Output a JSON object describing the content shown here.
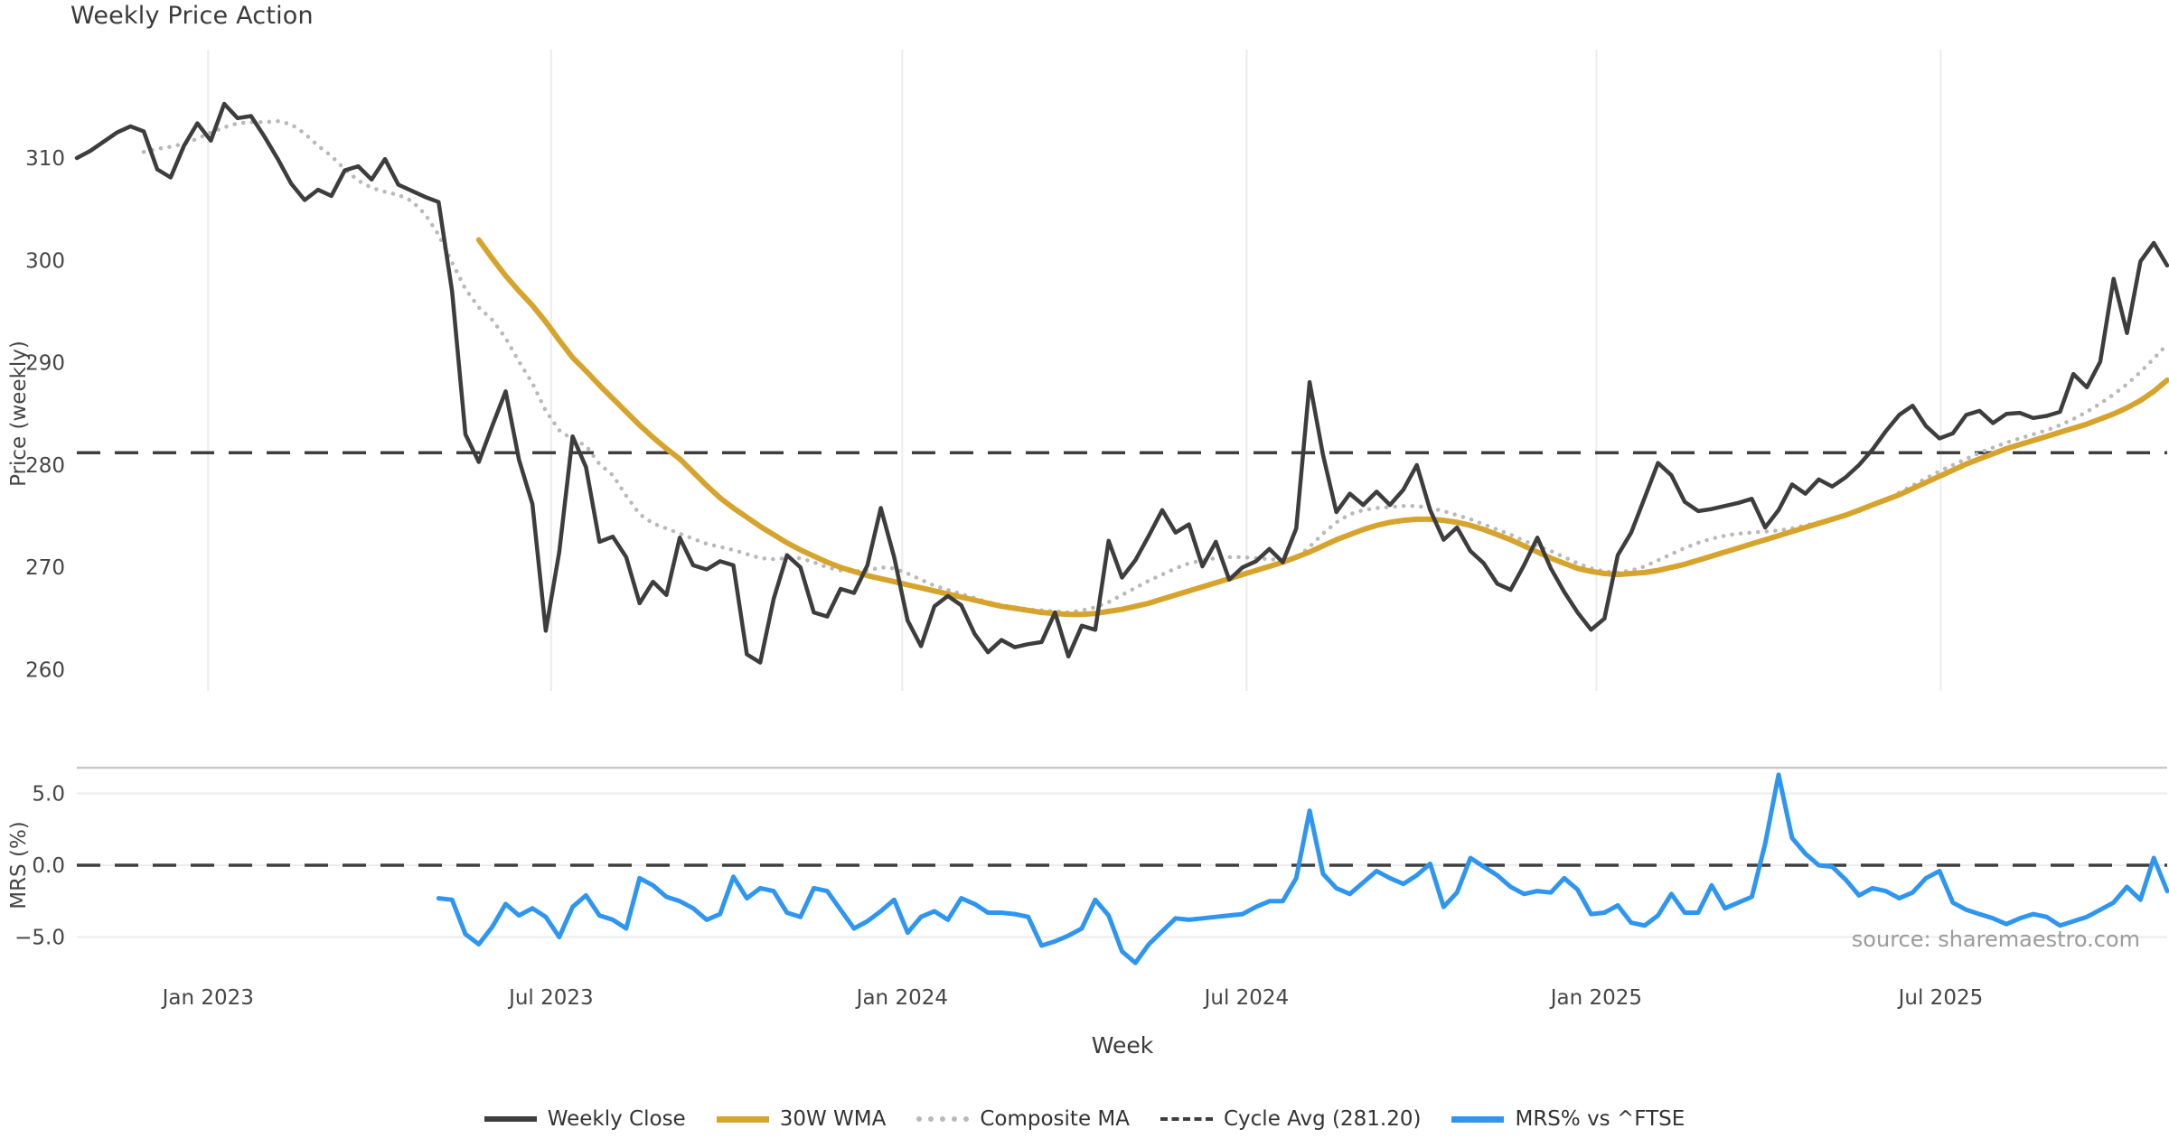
{
  "title": "Weekly Price Action",
  "source": "source: sharemaestro.com",
  "colors": {
    "close": "#3d3d3d",
    "wma": "#D6A42D",
    "composite": "#b9b9b9",
    "cycle": "#3e3e3e",
    "mrs": "#2E96F0",
    "grid": "#ececec",
    "spine": "#c9c9c9",
    "tick_text": "#454545",
    "muted_text": "#9b9b9b"
  },
  "legend": {
    "items": [
      {
        "label": "Weekly Close",
        "style": "solid-dark"
      },
      {
        "label": "30W WMA",
        "style": "solid-gold"
      },
      {
        "label": "Composite MA",
        "style": "dotted-gray"
      },
      {
        "label": "Cycle Avg (281.20)",
        "style": "dashed-dark"
      },
      {
        "label": "MRS% vs ^FTSE",
        "style": "solid-blue"
      }
    ]
  },
  "chart_data": [
    {
      "type": "line",
      "panel": "price",
      "title": "Weekly Price Action",
      "xlabel": "Week",
      "ylabel": "Price (weekly)",
      "ylim": [
        258,
        320.5
      ],
      "grid": "vertical-only",
      "y_ticks": [
        260,
        270,
        280,
        290,
        300,
        310
      ],
      "x_ticks": [
        {
          "label": "Jan 2023",
          "week": 9.8
        },
        {
          "label": "Jul 2023",
          "week": 35.4
        },
        {
          "label": "Jan 2024",
          "week": 61.6
        },
        {
          "label": "Jul 2024",
          "week": 87.3
        },
        {
          "label": "Jan 2025",
          "week": 113.4
        },
        {
          "label": "Jul 2025",
          "week": 139.1
        }
      ],
      "cycle_avg": {
        "label": "Cycle Avg (281.20)",
        "value": 281.2
      },
      "series": [
        {
          "name": "Weekly Close",
          "start_week": 0,
          "values": [
            310.0,
            310.7,
            311.6,
            312.5,
            313.1,
            312.6,
            308.9,
            308.1,
            311.2,
            313.4,
            311.7,
            315.3,
            313.9,
            314.1,
            312.1,
            309.9,
            307.5,
            305.9,
            306.9,
            306.3,
            308.8,
            309.2,
            307.9,
            309.9,
            307.4,
            306.8,
            306.2,
            305.7,
            297.0,
            283.0,
            280.3,
            283.8,
            287.2,
            280.5,
            276.2,
            263.8,
            271.5,
            282.8,
            279.8,
            272.5,
            273.0,
            271.0,
            266.5,
            268.6,
            267.3,
            272.9,
            270.2,
            269.8,
            270.6,
            270.2,
            261.5,
            260.7,
            266.9,
            271.2,
            270.0,
            265.6,
            265.2,
            267.9,
            267.5,
            270.2,
            275.8,
            271.0,
            264.8,
            262.3,
            266.2,
            267.2,
            266.3,
            263.5,
            261.7,
            262.9,
            262.2,
            262.5,
            262.7,
            265.6,
            261.3,
            264.3,
            263.9,
            272.6,
            269.0,
            270.7,
            273.1,
            275.6,
            273.4,
            274.2,
            270.1,
            272.5,
            268.8,
            270.0,
            270.6,
            271.8,
            270.5,
            273.8,
            288.1,
            281.0,
            275.4,
            277.2,
            276.1,
            277.4,
            276.1,
            277.6,
            280.0,
            275.6,
            272.7,
            273.9,
            271.6,
            270.4,
            268.4,
            267.8,
            270.2,
            272.9,
            269.9,
            267.6,
            265.6,
            263.9,
            265.0,
            271.2,
            273.4,
            276.8,
            280.2,
            279.0,
            276.4,
            275.5,
            275.7,
            276.0,
            276.3,
            276.7,
            273.9,
            275.6,
            278.1,
            277.2,
            278.6,
            277.9,
            278.8,
            280.0,
            281.5,
            283.3,
            284.9,
            285.8,
            283.8,
            282.6,
            283.1,
            284.9,
            285.3,
            284.1,
            285.0,
            285.1,
            284.6,
            284.8,
            285.2,
            288.9,
            287.6,
            290.1,
            298.2,
            292.9,
            299.9,
            301.7,
            299.5
          ]
        },
        {
          "name": "30W WMA",
          "start_week": 30,
          "values": [
            302.0,
            300.2,
            298.5,
            297.0,
            295.6,
            294.0,
            292.2,
            290.5,
            289.2,
            287.8,
            286.5,
            285.2,
            283.9,
            282.7,
            281.6,
            280.6,
            279.3,
            278.0,
            276.8,
            275.8,
            274.9,
            274.0,
            273.2,
            272.4,
            271.7,
            271.1,
            270.5,
            270.0,
            269.6,
            269.2,
            268.9,
            268.6,
            268.3,
            268.0,
            267.7,
            267.4,
            267.1,
            266.8,
            266.5,
            266.2,
            266.0,
            265.8,
            265.6,
            265.5,
            265.4,
            265.4,
            265.5,
            265.7,
            265.9,
            266.2,
            266.5,
            266.9,
            267.3,
            267.7,
            268.1,
            268.5,
            268.9,
            269.3,
            269.7,
            270.1,
            270.5,
            271.0,
            271.5,
            272.1,
            272.7,
            273.2,
            273.7,
            274.1,
            274.4,
            274.6,
            274.7,
            274.7,
            274.6,
            274.4,
            274.1,
            273.7,
            273.2,
            272.7,
            272.1,
            271.5,
            270.9,
            270.4,
            269.9,
            269.6,
            269.4,
            269.3,
            269.4,
            269.5,
            269.7,
            270.0,
            270.3,
            270.7,
            271.1,
            271.5,
            271.9,
            272.3,
            272.7,
            273.1,
            273.5,
            273.9,
            274.3,
            274.7,
            275.1,
            275.6,
            276.1,
            276.6,
            277.1,
            277.7,
            278.3,
            278.9,
            279.5,
            280.1,
            280.6,
            281.1,
            281.6,
            282.0,
            282.4,
            282.8,
            283.2,
            283.6,
            284.0,
            284.5,
            285.0,
            285.6,
            286.3,
            287.2,
            288.3
          ]
        },
        {
          "name": "Composite MA",
          "start_week": 5,
          "values": [
            310.6,
            310.9,
            311.1,
            311.4,
            311.9,
            312.5,
            313.0,
            313.4,
            313.5,
            313.5,
            313.6,
            313.3,
            312.4,
            311.2,
            310.2,
            308.9,
            307.8,
            307.1,
            306.7,
            306.4,
            305.8,
            304.5,
            302.5,
            299.8,
            297.2,
            295.4,
            294.2,
            292.4,
            290.1,
            288.0,
            285.3,
            283.4,
            282.5,
            281.9,
            280.1,
            279.0,
            277.0,
            275.2,
            274.3,
            273.8,
            273.3,
            272.8,
            272.3,
            272.0,
            271.7,
            271.3,
            270.9,
            270.8,
            270.9,
            270.9,
            270.5,
            270.0,
            269.7,
            269.6,
            269.7,
            270.0,
            269.9,
            269.4,
            268.8,
            268.2,
            267.8,
            267.4,
            267.0,
            266.6,
            266.3,
            266.1,
            265.9,
            265.8,
            265.7,
            265.6,
            265.8,
            266.1,
            266.6,
            267.3,
            268.0,
            268.7,
            269.3,
            269.9,
            270.4,
            270.7,
            270.9,
            271.0,
            271.0,
            270.9,
            270.8,
            270.7,
            270.9,
            272.0,
            273.3,
            274.4,
            275.2,
            275.6,
            275.8,
            275.9,
            276.0,
            276.0,
            275.8,
            275.5,
            275.1,
            274.7,
            274.2,
            273.7,
            273.2,
            272.6,
            272.1,
            271.6,
            271.0,
            270.4,
            269.9,
            269.6,
            269.5,
            269.7,
            270.1,
            270.7,
            271.3,
            271.9,
            272.4,
            272.8,
            273.1,
            273.3,
            273.4,
            273.5,
            273.6,
            273.8,
            274.1,
            274.4,
            274.7,
            275.1,
            275.5,
            276.0,
            276.6,
            277.3,
            278.0,
            278.7,
            279.4,
            280.0,
            280.6,
            281.2,
            281.7,
            282.2,
            282.6,
            283.0,
            283.4,
            283.9,
            284.5,
            285.2,
            286.0,
            286.9,
            287.9,
            289.1,
            290.4,
            291.8
          ]
        }
      ]
    },
    {
      "type": "line",
      "panel": "relative-strength",
      "xlabel": "Week",
      "ylabel": "MRS (%)",
      "ylim": [
        -7.6,
        6.8
      ],
      "y_ticks": [
        {
          "label": "5.0",
          "value": 5.0
        },
        {
          "label": "0.0",
          "value": 0.0
        },
        {
          "label": "−5.0",
          "value": -5.0
        }
      ],
      "zero_line": 0.0,
      "series": [
        {
          "name": "MRS% vs ^FTSE",
          "start_week": 27,
          "values": [
            -2.3,
            -2.4,
            -4.8,
            -5.5,
            -4.3,
            -2.7,
            -3.5,
            -3.0,
            -3.6,
            -5.0,
            -2.9,
            -2.1,
            -3.5,
            -3.8,
            -4.4,
            -0.9,
            -1.4,
            -2.2,
            -2.5,
            -3.0,
            -3.8,
            -3.4,
            -0.8,
            -2.3,
            -1.6,
            -1.8,
            -3.3,
            -3.6,
            -1.6,
            -1.8,
            -3.1,
            -4.4,
            -3.9,
            -3.2,
            -2.4,
            -4.7,
            -3.6,
            -3.2,
            -3.8,
            -2.3,
            -2.7,
            -3.3,
            -3.3,
            -3.4,
            -3.6,
            -5.6,
            -5.3,
            -4.9,
            -4.4,
            -2.4,
            -3.5,
            -6.0,
            -6.8,
            -5.5,
            -4.6,
            -3.7,
            -3.8,
            -3.7,
            -3.6,
            -3.5,
            -3.4,
            -2.9,
            -2.5,
            -2.5,
            -0.9,
            3.8,
            -0.6,
            -1.6,
            -2.0,
            -1.2,
            -0.4,
            -0.9,
            -1.3,
            -0.7,
            0.1,
            -2.9,
            -1.9,
            0.5,
            -0.1,
            -0.7,
            -1.5,
            -2.0,
            -1.8,
            -1.9,
            -0.9,
            -1.7,
            -3.4,
            -3.3,
            -2.8,
            -4.0,
            -4.2,
            -3.5,
            -2.0,
            -3.3,
            -3.3,
            -1.4,
            -3.0,
            -2.6,
            -2.2,
            1.5,
            6.3,
            1.9,
            0.8,
            0.0,
            -0.1,
            -1.0,
            -2.1,
            -1.6,
            -1.8,
            -2.3,
            -1.9,
            -0.9,
            -0.4,
            -2.6,
            -3.1,
            -3.4,
            -3.7,
            -4.1,
            -3.7,
            -3.4,
            -3.6,
            -4.2,
            -3.9,
            -3.6,
            -3.1,
            -2.6,
            -1.5,
            -2.4,
            0.5,
            -1.8
          ]
        }
      ]
    }
  ]
}
